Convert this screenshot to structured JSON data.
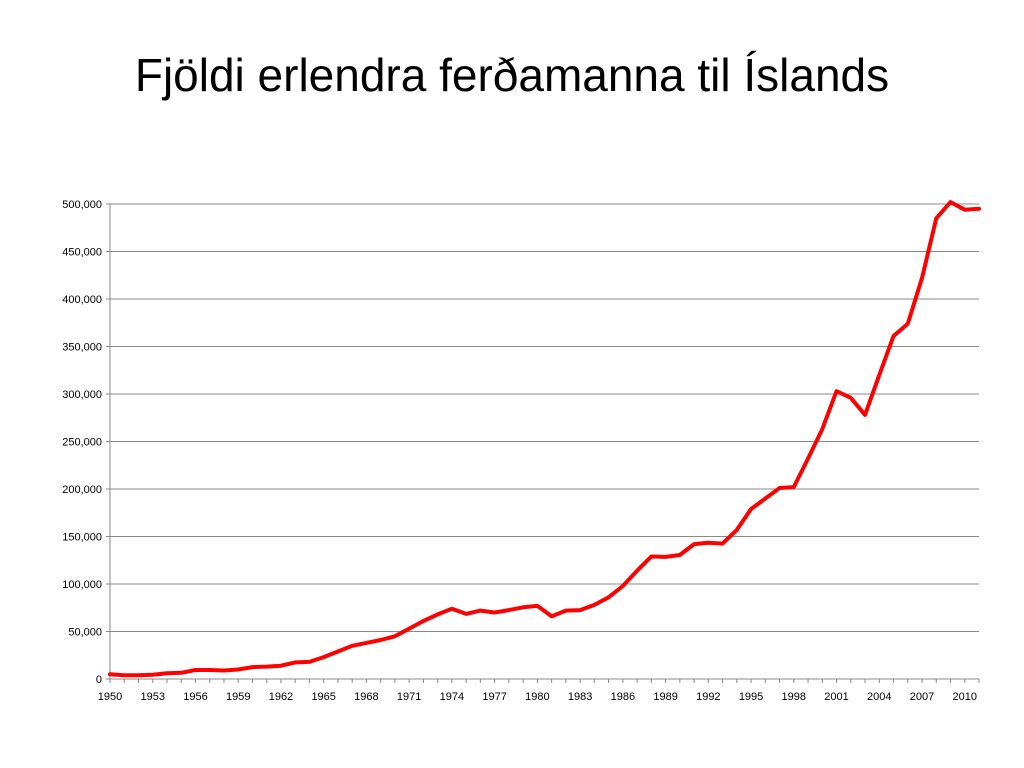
{
  "slide": {
    "title": "Fjöldi erlendra ferðamanna til Íslands"
  },
  "chart_data": {
    "type": "line",
    "title": "",
    "xlabel": "",
    "ylabel": "",
    "xlim": [
      1950,
      2011
    ],
    "ylim": [
      0,
      500000
    ],
    "y_ticks": [
      "0",
      "50,000",
      "100,000",
      "150,000",
      "200,000",
      "250,000",
      "300,000",
      "350,000",
      "400,000",
      "450,000",
      "500,000"
    ],
    "x_ticks": [
      "1950",
      "1953",
      "1956",
      "1959",
      "1962",
      "1965",
      "1968",
      "1971",
      "1974",
      "1977",
      "1980",
      "1983",
      "1986",
      "1989",
      "1992",
      "1995",
      "1998",
      "2001",
      "2004",
      "2007",
      "2010"
    ],
    "grid": "horizontal",
    "legend": "none",
    "series": [
      {
        "color": "#ff0000",
        "x": [
          1950,
          1951,
          1952,
          1953,
          1954,
          1955,
          1956,
          1957,
          1958,
          1959,
          1960,
          1961,
          1962,
          1963,
          1964,
          1965,
          1966,
          1967,
          1968,
          1969,
          1970,
          1971,
          1972,
          1973,
          1974,
          1975,
          1976,
          1977,
          1978,
          1979,
          1980,
          1981,
          1982,
          1983,
          1984,
          1985,
          1986,
          1987,
          1988,
          1989,
          1990,
          1991,
          1992,
          1993,
          1994,
          1995,
          1996,
          1997,
          1998,
          1999,
          2000,
          2001,
          2002,
          2003,
          2004,
          2005,
          2006,
          2007,
          2008,
          2009,
          2010,
          2011
        ],
        "values": [
          5000,
          4000,
          4000,
          4500,
          6000,
          6500,
          9500,
          9500,
          9000,
          10000,
          12500,
          13000,
          14000,
          17500,
          18000,
          23000,
          29000,
          35000,
          38000,
          41000,
          45000,
          53000,
          61000,
          68000,
          74000,
          68500,
          72000,
          70000,
          72500,
          75500,
          77000,
          66000,
          72000,
          72500,
          78000,
          86000,
          98000,
          114000,
          129000,
          128500,
          130500,
          142000,
          143500,
          142500,
          157000,
          179000,
          190000,
          201000,
          202000,
          232000,
          263000,
          303000,
          296000,
          278000,
          320000,
          361000,
          374000,
          422000,
          485000,
          502000,
          494000,
          495000
        ]
      }
    ]
  }
}
